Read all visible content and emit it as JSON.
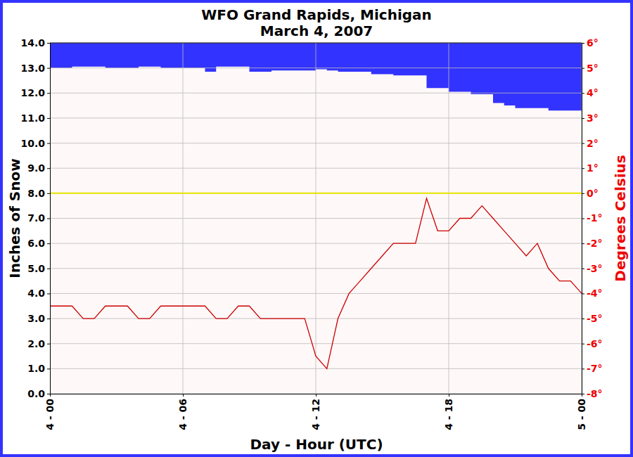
{
  "chart_data": {
    "type": "line",
    "title": "WFO Grand Rapids, Michigan",
    "subtitle": "March 4, 2007",
    "x_label": "Day - Hour (UTC)",
    "y_label": "Inches of Snow",
    "y2_label": "Degrees Celsius",
    "x": [
      0,
      0.5,
      1,
      1.5,
      2,
      2.5,
      3,
      3.5,
      4,
      4.5,
      5,
      5.5,
      6,
      6.5,
      7,
      7.5,
      8,
      8.5,
      9,
      9.5,
      10,
      10.5,
      11,
      11.5,
      12,
      12.5,
      13,
      13.5,
      14,
      14.5,
      15,
      15.5,
      16,
      16.5,
      17,
      17.5,
      18,
      18.5,
      19,
      19.5,
      20,
      20.5,
      21,
      21.5,
      22,
      22.5,
      23,
      23.5,
      24
    ],
    "xlim": [
      0,
      24
    ],
    "xticks": [
      {
        "value": 0,
        "label": "4 - 00"
      },
      {
        "value": 6,
        "label": "4 - 06"
      },
      {
        "value": 12,
        "label": "4 - 12"
      },
      {
        "value": 18,
        "label": "4 - 18"
      },
      {
        "value": 24,
        "label": "5 - 00"
      }
    ],
    "ylim": [
      0,
      14
    ],
    "yticks": [
      {
        "value": 0,
        "label": "0.0"
      },
      {
        "value": 1,
        "label": "1.0"
      },
      {
        "value": 2,
        "label": "2.0"
      },
      {
        "value": 3,
        "label": "3.0"
      },
      {
        "value": 4,
        "label": "4.0"
      },
      {
        "value": 5,
        "label": "5.0"
      },
      {
        "value": 6,
        "label": "6.0"
      },
      {
        "value": 7,
        "label": "7.0"
      },
      {
        "value": 8,
        "label": "8.0"
      },
      {
        "value": 9,
        "label": "9.0"
      },
      {
        "value": 10,
        "label": "10.0"
      },
      {
        "value": 11,
        "label": "11.0"
      },
      {
        "value": 12,
        "label": "12.0"
      },
      {
        "value": 13,
        "label": "13.0"
      },
      {
        "value": 14,
        "label": "14.0"
      }
    ],
    "y2lim": [
      -8,
      6
    ],
    "y2ticks": [
      {
        "value": -8,
        "label": "-8°"
      },
      {
        "value": -7,
        "label": "-7°"
      },
      {
        "value": -6,
        "label": "-6°"
      },
      {
        "value": -5,
        "label": "-5°"
      },
      {
        "value": -4,
        "label": "-4°"
      },
      {
        "value": -3,
        "label": "-3°"
      },
      {
        "value": -2,
        "label": "-2°"
      },
      {
        "value": -1,
        "label": "-1°"
      },
      {
        "value": 0,
        "label": "0°"
      },
      {
        "value": 1,
        "label": "1°"
      },
      {
        "value": 2,
        "label": "2°"
      },
      {
        "value": 3,
        "label": "3°"
      },
      {
        "value": 4,
        "label": "4°"
      },
      {
        "value": 5,
        "label": "5°"
      },
      {
        "value": 6,
        "label": "6°"
      }
    ],
    "grid": true,
    "freezing_line": 0,
    "series": [
      {
        "type": "area",
        "color": "#3333ff",
        "values": [
          13.0,
          13.0,
          13.05,
          13.05,
          13.05,
          13.0,
          13.0,
          13.0,
          13.05,
          13.05,
          13.0,
          13.0,
          13.0,
          13.0,
          12.85,
          13.05,
          13.05,
          13.05,
          12.85,
          12.85,
          12.9,
          12.9,
          12.9,
          12.9,
          12.95,
          12.9,
          12.85,
          12.85,
          12.85,
          12.75,
          12.75,
          12.7,
          12.7,
          12.7,
          12.2,
          12.2,
          12.05,
          12.05,
          11.95,
          11.95,
          11.6,
          11.5,
          11.4,
          11.4,
          11.4,
          11.3,
          11.3,
          11.3,
          11.3
        ]
      },
      {
        "type": "line",
        "color": "#cc0000",
        "axis": "y2",
        "values": [
          -4.5,
          -4.5,
          -4.5,
          -5,
          -5,
          -4.5,
          -4.5,
          -4.5,
          -5,
          -5,
          -4.5,
          -4.5,
          -4.5,
          -4.5,
          -4.5,
          -5,
          -5,
          -4.5,
          -4.5,
          -5,
          -5,
          -5,
          -5,
          -5,
          -6.5,
          -7,
          -5,
          -4,
          -3.5,
          -3,
          -2.5,
          -2,
          -2,
          -2,
          -0.2,
          -1.5,
          -1.5,
          -1,
          -1,
          -0.5,
          -1,
          -1.5,
          -2,
          -2.5,
          -2,
          -3,
          -3.5,
          -3.5,
          -4
        ]
      }
    ]
  }
}
